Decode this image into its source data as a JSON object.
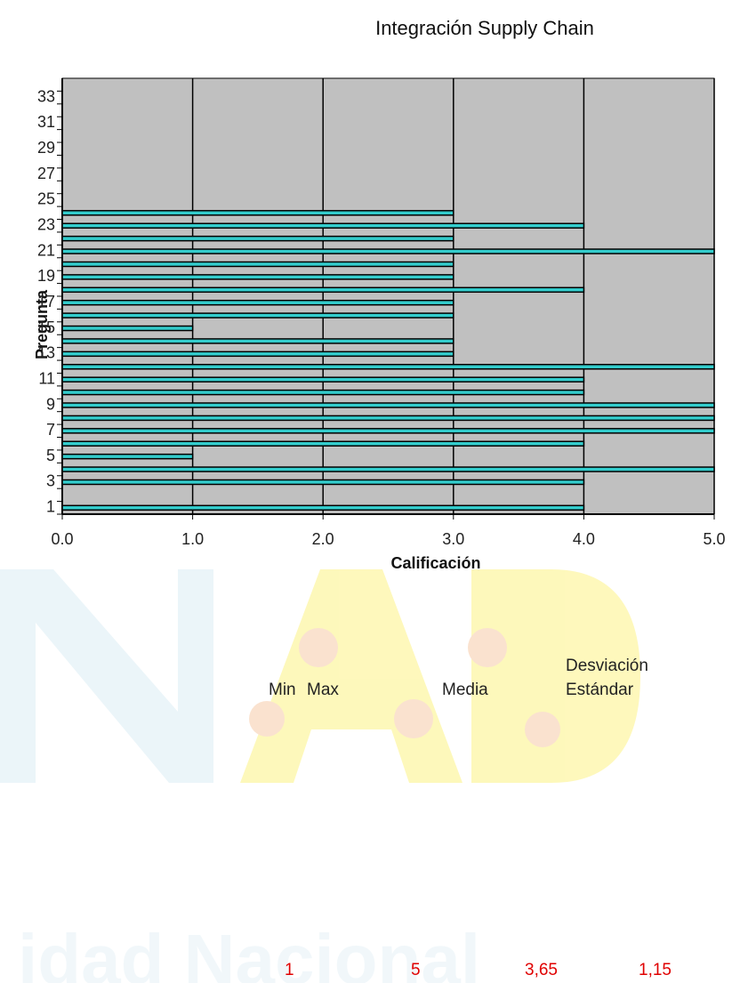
{
  "chart_data": {
    "type": "hbar",
    "title": "Integración Supply Chain",
    "x_label": "Calificación",
    "y_label": "Pregunta",
    "categories": [
      "1",
      null,
      "3",
      null,
      "5",
      null,
      "7",
      null,
      "9",
      null,
      "11",
      null,
      "13",
      null,
      "15",
      null,
      "17",
      null,
      "19",
      null,
      "21",
      null,
      "23",
      null,
      "25",
      null,
      "27",
      null,
      "29",
      null,
      "31",
      null,
      "33",
      null
    ],
    "values": [
      4,
      null,
      4,
      5,
      1,
      4,
      5,
      5,
      5,
      4,
      4,
      5,
      3,
      3,
      1,
      3,
      3,
      4,
      3,
      3,
      5,
      3,
      4,
      3,
      null,
      null,
      null,
      null,
      null,
      null,
      null,
      null,
      null,
      null
    ],
    "color": "#33cccc",
    "plot_background": "#c0c0c0",
    "grid": true,
    "xlim": [
      0,
      5
    ],
    "xticks": [
      {
        "value": 0,
        "label": "0.0"
      },
      {
        "value": 1,
        "label": "1.0"
      },
      {
        "value": 2,
        "label": "2.0"
      },
      {
        "value": 3,
        "label": "3.0"
      },
      {
        "value": 4,
        "label": "4.0"
      },
      {
        "value": 5,
        "label": "5.0"
      }
    ]
  },
  "stats": {
    "headers": [
      "Min",
      "Max",
      "Media",
      "Desviación Estándar"
    ],
    "values": [
      "1",
      "5",
      "3,65",
      "1,15"
    ]
  }
}
